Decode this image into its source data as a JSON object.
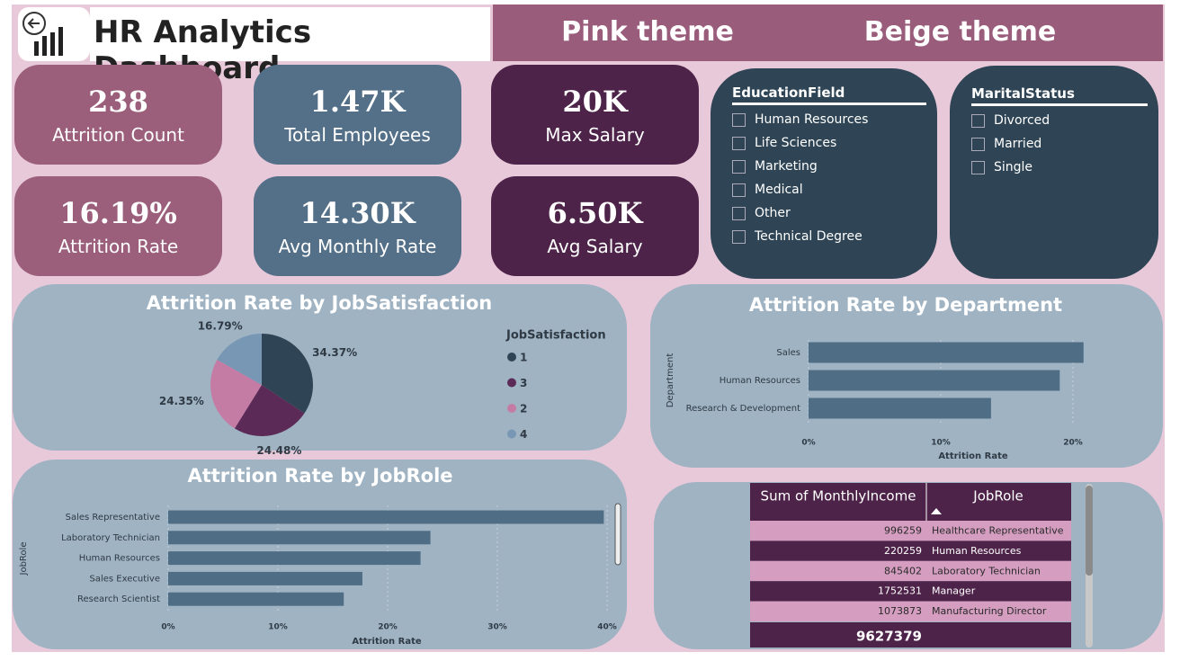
{
  "header": {
    "title": "HR Analytics Dashboard",
    "buttons": [
      "Pink theme",
      "Beige theme"
    ]
  },
  "kpis": [
    {
      "value": "238",
      "label": "Attrition Count"
    },
    {
      "value": "1.47K",
      "label": "Total Employees"
    },
    {
      "value": "20K",
      "label": "Max Salary"
    },
    {
      "value": "16.19%",
      "label": "Attrition Rate"
    },
    {
      "value": "14.30K",
      "label": "Avg Monthly Rate"
    },
    {
      "value": "6.50K",
      "label": "Avg Salary"
    }
  ],
  "filters": [
    {
      "title": "EducationField",
      "options": [
        "Human Resources",
        "Life Sciences",
        "Marketing",
        "Medical",
        "Other",
        "Technical Degree"
      ]
    },
    {
      "title": "MaritalStatus",
      "options": [
        "Divorced",
        "Married",
        "Single"
      ]
    }
  ],
  "chart_data": [
    {
      "type": "pie",
      "title": "Attrition Rate by JobSatisfaction",
      "legend_title": "JobSatisfaction",
      "categories": [
        "1",
        "3",
        "2",
        "4"
      ],
      "values": [
        34.37,
        24.48,
        24.35,
        16.79
      ],
      "value_labels": [
        "34.37%",
        "24.48%",
        "24.35%",
        "16.79%"
      ],
      "colors": [
        "#2f4555",
        "#5c2a57",
        "#c57ca4",
        "#7797b5"
      ]
    },
    {
      "type": "hbar",
      "title": "Attrition Rate by Department",
      "x_label": "Attrition Rate",
      "y_label": "Department",
      "categories": [
        "Sales",
        "Human Resources",
        "Research & Development"
      ],
      "values": [
        20.8,
        19.0,
        13.8
      ],
      "color": "#4f6d85",
      "xlim": [
        0,
        22
      ],
      "xticks": [
        {
          "value": 0,
          "label": "0%"
        },
        {
          "value": 10,
          "label": "10%"
        },
        {
          "value": 20,
          "label": "20%"
        }
      ],
      "grid": true
    },
    {
      "type": "hbar",
      "title": "Attrition Rate by JobRole",
      "x_label": "Attrition Rate",
      "y_label": "JobRole",
      "categories": [
        "Sales Representative",
        "Laboratory Technician",
        "Human Resources",
        "Sales Executive",
        "Research Scientist"
      ],
      "values": [
        39.7,
        23.9,
        23.0,
        17.7,
        16.0
      ],
      "color": "#4f6d85",
      "xlim": [
        0,
        40
      ],
      "xticks": [
        {
          "value": 0,
          "label": "0%"
        },
        {
          "value": 10,
          "label": "10%"
        },
        {
          "value": 20,
          "label": "20%"
        },
        {
          "value": 30,
          "label": "30%"
        },
        {
          "value": 40,
          "label": "40%"
        }
      ],
      "grid": true
    }
  ],
  "table": {
    "columns": [
      "Sum of MonthlyIncome",
      "JobRole"
    ],
    "rows": [
      [
        996259,
        "Healthcare Representative"
      ],
      [
        220259,
        "Human Resources"
      ],
      [
        845402,
        "Laboratory Technician"
      ],
      [
        1752531,
        "Manager"
      ],
      [
        1073873,
        "Manufacturing Director"
      ]
    ],
    "total": 9627379
  }
}
